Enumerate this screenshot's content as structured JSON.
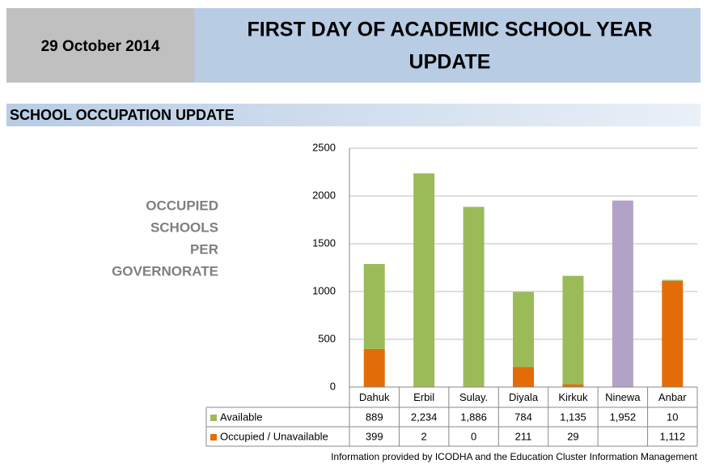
{
  "header": {
    "date": "29  October 2014",
    "title": [
      "FIRST DAY OF ACADEMIC SCHOOL YEAR",
      "UPDATE"
    ]
  },
  "section": "SCHOOL OCCUPATION UPDATE",
  "side_label": [
    "OCCUPIED",
    "SCHOOLS",
    "PER",
    "GOVERNORATE"
  ],
  "footer": "Information provided by ICODHA and the Education Cluster Information Management",
  "chart_data": {
    "type": "bar",
    "stacked": true,
    "categories": [
      "Dahuk",
      "Erbil",
      "Sulay.",
      "Diyala",
      "Kirkuk",
      "Ninewa",
      "Anbar"
    ],
    "series": [
      {
        "name": "Available",
        "color": "#9bbb59",
        "point_colors": [
          "#9bbb59",
          "#9bbb59",
          "#9bbb59",
          "#9bbb59",
          "#9bbb59",
          "#b3a2c7",
          "#9bbb59"
        ],
        "values": [
          889,
          2234,
          1886,
          784,
          1135,
          1952,
          10
        ],
        "value_labels": [
          "889",
          "2,234",
          "1,886",
          "784",
          "1,135",
          "1,952",
          "10"
        ]
      },
      {
        "name": "Occupied / Unavailable",
        "color": "#e36c09",
        "values": [
          399,
          2,
          0,
          211,
          29,
          null,
          1112
        ],
        "value_labels": [
          "399",
          "2",
          "0",
          "211",
          "29",
          null,
          "1,112"
        ]
      }
    ],
    "ylim": [
      0,
      2500
    ],
    "yticks": [
      0,
      500,
      1000,
      1500,
      2000,
      2500
    ],
    "grid": true
  }
}
